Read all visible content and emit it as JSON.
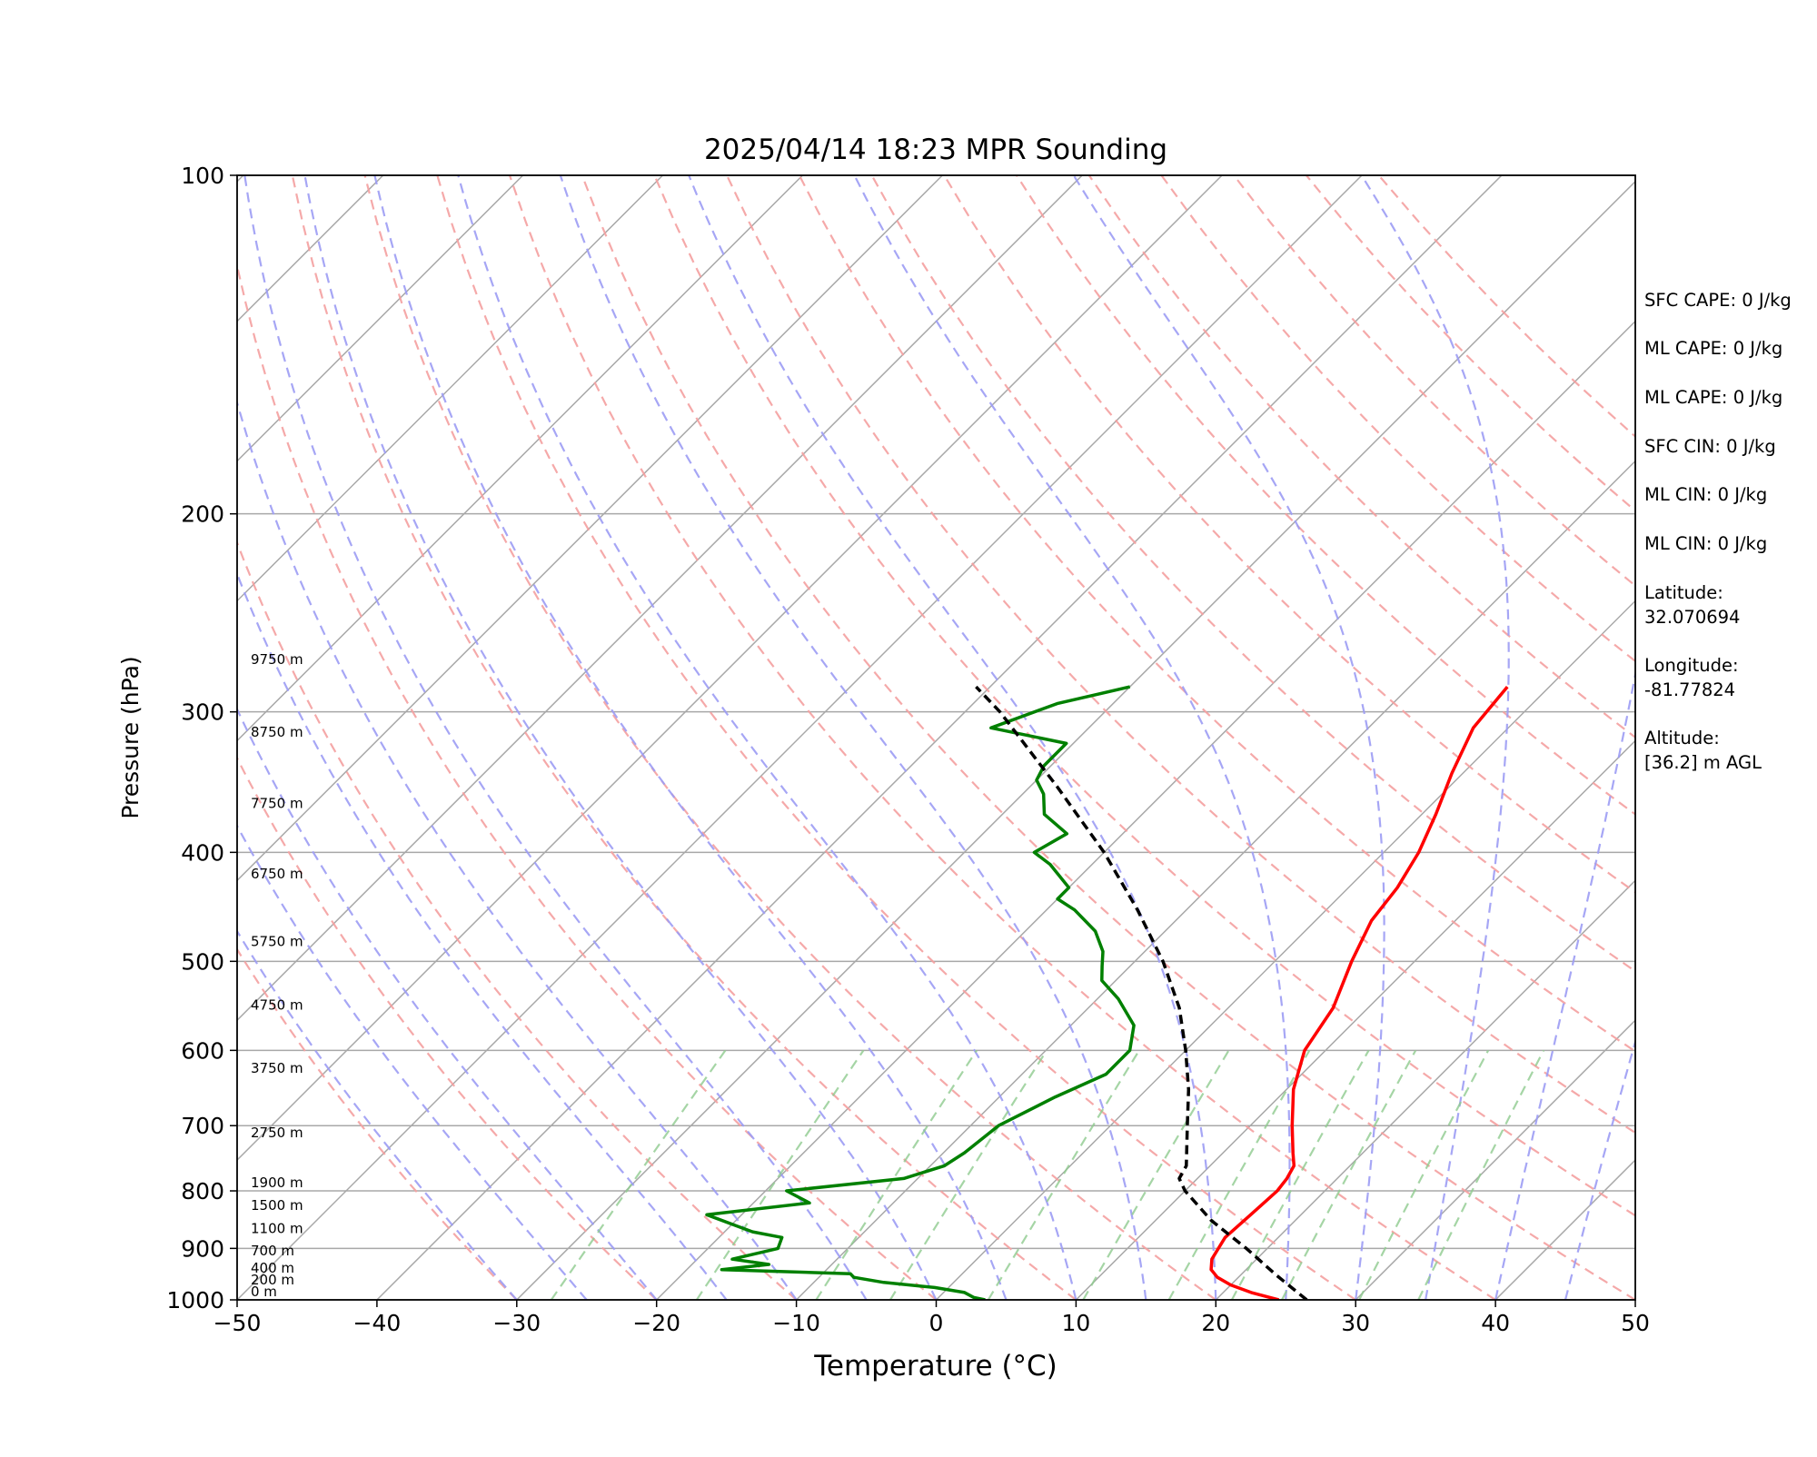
{
  "chart_data": {
    "type": "line",
    "subtype": "skew-T log-P diagram",
    "title": "2025/04/14 18:23 MPR Sounding",
    "xlabel": "Temperature (°C)",
    "ylabel": "Pressure (hPa)",
    "xlim": [
      -50,
      50
    ],
    "ylim": [
      1000,
      100
    ],
    "y_scale": "log",
    "xticks": [
      -50,
      -40,
      -30,
      -20,
      -10,
      0,
      10,
      20,
      30,
      40,
      50
    ],
    "yticks": [
      100,
      200,
      300,
      400,
      500,
      600,
      700,
      800,
      900,
      1000
    ],
    "grid": "horizontal pressure lines and skewed isotherms",
    "colors": {
      "temperature": "#ff0000",
      "dewpoint": "#008000",
      "parcel": "#000000",
      "isotherm": "#a8a8a8",
      "dry_adiabat": "#f4a0a0",
      "moist_adiabat": "#9c9cf4",
      "mixing_ratio": "#8fca8f"
    },
    "height_labels": [
      {
        "p": 1000,
        "label": "0 m"
      },
      {
        "p": 976,
        "label": "200 m"
      },
      {
        "p": 953,
        "label": "400 m"
      },
      {
        "p": 920,
        "label": "700 m"
      },
      {
        "p": 879,
        "label": "1100 m"
      },
      {
        "p": 838,
        "label": "1500 m"
      },
      {
        "p": 800,
        "label": "1900 m"
      },
      {
        "p": 722,
        "label": "2750 m"
      },
      {
        "p": 633,
        "label": "3750 m"
      },
      {
        "p": 556,
        "label": "4750 m"
      },
      {
        "p": 488,
        "label": "5750 m"
      },
      {
        "p": 425,
        "label": "6750 m"
      },
      {
        "p": 368,
        "label": "7750 m"
      },
      {
        "p": 318,
        "label": "8750 m"
      },
      {
        "p": 274,
        "label": "9750 m"
      }
    ],
    "series": [
      {
        "key": "temperature",
        "points": [
          [
            1000,
            24.5
          ],
          [
            985,
            22.0
          ],
          [
            970,
            20.0
          ],
          [
            955,
            18.5
          ],
          [
            940,
            17.5
          ],
          [
            920,
            16.8
          ],
          [
            900,
            16.5
          ],
          [
            880,
            16.2
          ],
          [
            860,
            16.3
          ],
          [
            840,
            16.4
          ],
          [
            820,
            16.5
          ],
          [
            800,
            16.6
          ],
          [
            780,
            16.4
          ],
          [
            760,
            16.0
          ],
          [
            740,
            15.0
          ],
          [
            700,
            13.0
          ],
          [
            650,
            10.5
          ],
          [
            600,
            8.5
          ],
          [
            550,
            7.5
          ],
          [
            500,
            5.5
          ],
          [
            460,
            4.0
          ],
          [
            430,
            3.5
          ],
          [
            400,
            2.5
          ],
          [
            370,
            1.0
          ],
          [
            340,
            -0.8
          ],
          [
            310,
            -2.5
          ],
          [
            285,
            -3.0
          ]
        ]
      },
      {
        "key": "dewpoint",
        "points": [
          [
            1000,
            3.5
          ],
          [
            995,
            2.5
          ],
          [
            985,
            1.5
          ],
          [
            975,
            -1.0
          ],
          [
            965,
            -5.0
          ],
          [
            955,
            -7.5
          ],
          [
            948,
            -8.0
          ],
          [
            940,
            -17.5
          ],
          [
            930,
            -14.5
          ],
          [
            920,
            -17.5
          ],
          [
            900,
            -15.0
          ],
          [
            880,
            -15.5
          ],
          [
            870,
            -18.0
          ],
          [
            860,
            -19.5
          ],
          [
            840,
            -22.5
          ],
          [
            820,
            -16.0
          ],
          [
            800,
            -18.5
          ],
          [
            780,
            -11.0
          ],
          [
            760,
            -9.0
          ],
          [
            740,
            -8.5
          ],
          [
            700,
            -8.0
          ],
          [
            660,
            -6.0
          ],
          [
            630,
            -4.0
          ],
          [
            600,
            -4.0
          ],
          [
            570,
            -5.5
          ],
          [
            540,
            -8.5
          ],
          [
            520,
            -11.0
          ],
          [
            505,
            -12.0
          ],
          [
            490,
            -13.0
          ],
          [
            470,
            -15.0
          ],
          [
            450,
            -18.0
          ],
          [
            440,
            -20.0
          ],
          [
            430,
            -20.0
          ],
          [
            410,
            -23.0
          ],
          [
            400,
            -25.0
          ],
          [
            385,
            -24.0
          ],
          [
            370,
            -27.0
          ],
          [
            355,
            -28.5
          ],
          [
            345,
            -30.0
          ],
          [
            335,
            -30.5
          ],
          [
            320,
            -30.5
          ],
          [
            310,
            -37.0
          ],
          [
            295,
            -34.0
          ],
          [
            285,
            -30.0
          ]
        ]
      },
      {
        "key": "parcel",
        "points": [
          [
            1000,
            26.5
          ],
          [
            950,
            22.5
          ],
          [
            900,
            18.5
          ],
          [
            850,
            14.0
          ],
          [
            800,
            10.0
          ],
          [
            780,
            8.7
          ],
          [
            760,
            8.3
          ],
          [
            700,
            5.5
          ],
          [
            650,
            3.0
          ],
          [
            600,
            0.0
          ],
          [
            550,
            -3.5
          ],
          [
            500,
            -8.0
          ],
          [
            450,
            -13.5
          ],
          [
            400,
            -20.0
          ],
          [
            350,
            -28.0
          ],
          [
            300,
            -37.5
          ],
          [
            285,
            -41.0
          ]
        ]
      }
    ]
  },
  "side_text": [
    "SFC CAPE: 0 J/kg",
    "ML CAPE: 0 J/kg",
    "ML CAPE: 0 J/kg",
    "SFC CIN: 0 J/kg",
    "ML CIN: 0 J/kg",
    "ML CIN: 0 J/kg",
    "Latitude:",
    "32.070694",
    "Longitude:",
    "-81.77824",
    "Altitude:",
    "[36.2] m AGL"
  ]
}
